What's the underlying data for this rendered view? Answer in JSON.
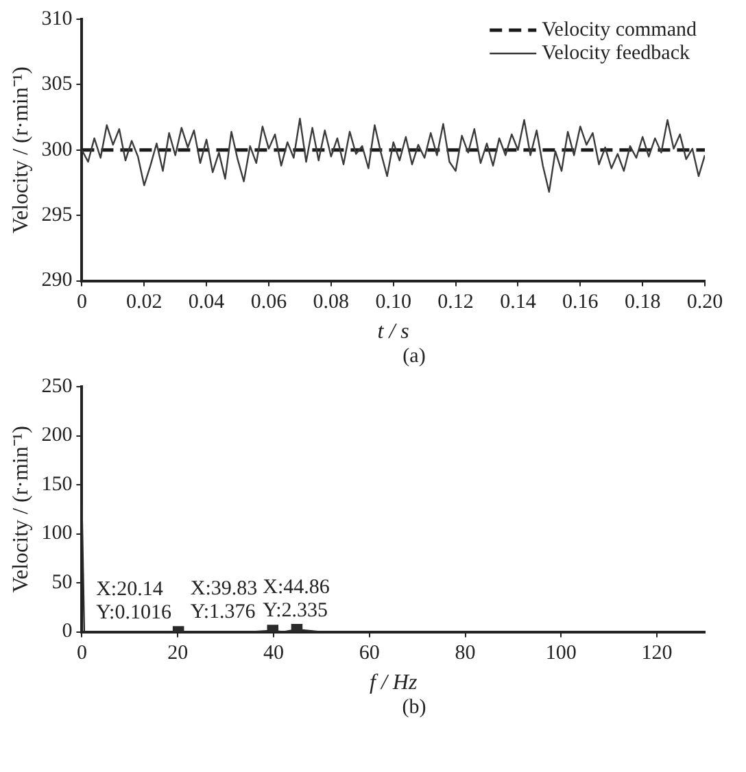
{
  "chart_data": [
    {
      "type": "line",
      "xlabel": "t / s",
      "ylabel": "Velocity / (r·min⁻¹)",
      "xlim": [
        0,
        0.2
      ],
      "xticks": [
        0,
        0.02,
        0.04,
        0.06,
        0.08,
        {
          "value": 0.1,
          "label": "0.10"
        },
        0.12,
        0.14,
        0.16,
        0.18,
        {
          "value": 0.2,
          "label": "0.20"
        }
      ],
      "ylim": [
        290,
        310
      ],
      "yticks": [
        290,
        295,
        300,
        305,
        310
      ],
      "legend": "top right",
      "annotations": [
        "(a)"
      ],
      "series": [
        {
          "name": "Velocity feedback",
          "color": "#3a3a3a",
          "line_style": "solid",
          "x": [
            0,
            0.002,
            0.004,
            0.006,
            0.008,
            0.01,
            0.012,
            0.014,
            0.016,
            0.018,
            0.02,
            0.022,
            0.024,
            0.026,
            0.028,
            0.03,
            0.032,
            0.034,
            0.036,
            0.038,
            0.04,
            0.042,
            0.044,
            0.046,
            0.048,
            0.05,
            0.052,
            0.054,
            0.056,
            0.058,
            0.06,
            0.062,
            0.064,
            0.066,
            0.068,
            0.07,
            0.072,
            0.074,
            0.076,
            0.078,
            0.08,
            0.082,
            0.084,
            0.086,
            0.088,
            0.09,
            0.092,
            0.094,
            0.096,
            0.098,
            0.1,
            0.102,
            0.104,
            0.106,
            0.108,
            0.11,
            0.112,
            0.114,
            0.116,
            0.118,
            0.12,
            0.122,
            0.124,
            0.126,
            0.128,
            0.13,
            0.132,
            0.134,
            0.136,
            0.138,
            0.14,
            0.142,
            0.144,
            0.146,
            0.148,
            0.15,
            0.152,
            0.154,
            0.156,
            0.158,
            0.16,
            0.162,
            0.164,
            0.166,
            0.168,
            0.17,
            0.172,
            0.174,
            0.176,
            0.178,
            0.18,
            0.182,
            0.184,
            0.186,
            0.188,
            0.19,
            0.192,
            0.194,
            0.196,
            0.198,
            0.2
          ],
          "values": [
            300.0,
            299.1,
            300.9,
            299.4,
            301.9,
            300.4,
            301.6,
            299.2,
            300.7,
            299.5,
            297.3,
            298.8,
            300.5,
            298.4,
            301.3,
            299.6,
            301.7,
            300.2,
            301.5,
            299.0,
            300.8,
            298.3,
            299.8,
            297.8,
            301.4,
            299.3,
            297.6,
            300.3,
            299.0,
            301.8,
            300.1,
            301.2,
            298.8,
            300.6,
            299.4,
            302.4,
            299.1,
            301.7,
            299.2,
            301.5,
            299.5,
            300.9,
            298.9,
            301.4,
            299.7,
            300.3,
            298.6,
            301.9,
            299.8,
            298.0,
            300.6,
            299.2,
            301.0,
            298.9,
            300.4,
            299.4,
            301.3,
            299.6,
            302.0,
            299.1,
            298.4,
            301.1,
            299.8,
            301.6,
            299.0,
            300.5,
            298.8,
            300.9,
            299.6,
            301.2,
            300.0,
            302.3,
            299.6,
            301.5,
            298.8,
            296.8,
            299.9,
            298.4,
            301.4,
            299.6,
            301.8,
            300.4,
            301.3,
            298.9,
            300.2,
            298.6,
            299.7,
            298.4,
            300.3,
            299.4,
            301.0,
            299.5,
            300.9,
            299.8,
            302.3,
            300.1,
            301.2,
            299.3,
            300.1,
            298.0,
            299.6
          ]
        },
        {
          "name": "Velocity command",
          "color": "#1a1a1a",
          "line_style": "dashed",
          "x": [
            0,
            0.2
          ],
          "values": [
            300,
            300
          ]
        }
      ]
    },
    {
      "type": "line",
      "xlabel": "f / Hz",
      "ylabel": "Velocity / (r·min⁻¹)",
      "xlim": [
        0,
        130
      ],
      "xticks": [
        0,
        20,
        40,
        60,
        80,
        100,
        120
      ],
      "ylim": [
        0,
        250
      ],
      "yticks": [
        0,
        50,
        100,
        150,
        200,
        250
      ],
      "annotations": [
        {
          "text": "X:20.14\nY:0.1016",
          "x": 20.14,
          "y": 0.1016
        },
        {
          "text": "X:39.83\nY:1.376",
          "x": 39.83,
          "y": 1.376
        },
        {
          "text": "X:44.86\nY:2.335",
          "x": 44.86,
          "y": 2.335
        },
        "(b)"
      ],
      "series": [
        {
          "color": "#2a2a2a",
          "line_style": "solid",
          "x": [
            0,
            0.5,
            5,
            10,
            15,
            20.14,
            25,
            30,
            35,
            39.83,
            42,
            44.86,
            50,
            60,
            70,
            80,
            90,
            100,
            110,
            120,
            130
          ],
          "values": [
            130,
            0,
            0,
            0,
            0,
            0.1016,
            0,
            0,
            0,
            1.376,
            0,
            2.335,
            0,
            0,
            0,
            0,
            0,
            0,
            0,
            0,
            0
          ]
        },
        {
          "type": "scatter",
          "color": "#2a2a2a",
          "marker": "square",
          "x": [
            20.14,
            39.83,
            44.86
          ],
          "values": [
            0.1016,
            1.376,
            2.335
          ]
        }
      ]
    }
  ]
}
